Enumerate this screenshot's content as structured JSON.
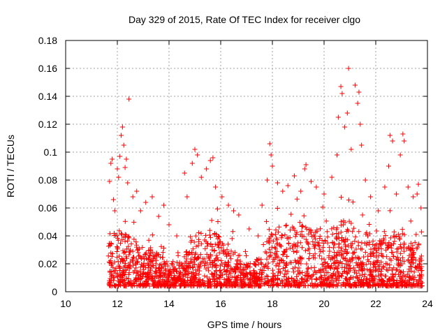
{
  "chart_data": {
    "type": "scatter",
    "title": "Day 329 of 2015, Rate Of TEC Index for receiver clgo",
    "xlabel": "GPS time / hours",
    "ylabel": "ROTI / TECUs",
    "xlim": [
      10,
      24
    ],
    "ylim": [
      0,
      0.18
    ],
    "xticks": [
      10,
      12,
      14,
      16,
      18,
      20,
      22,
      24
    ],
    "xtick_labels": [
      "10",
      "12",
      "14",
      "16",
      "18",
      "20",
      "22",
      "24"
    ],
    "yticks": [
      0,
      0.02,
      0.04,
      0.06,
      0.08,
      0.1,
      0.12,
      0.14,
      0.16,
      0.18
    ],
    "ytick_labels": [
      "0",
      "0.02",
      "0.04",
      "0.06",
      "0.08",
      "0.1",
      "0.12",
      "0.14",
      "0.16",
      "0.18"
    ],
    "grid": true,
    "marker": "+",
    "color": "#ff0000",
    "series": [
      {
        "name": "ROTI",
        "points": [
          [
            11.7,
            0.079
          ],
          [
            11.75,
            0.092
          ],
          [
            11.8,
            0.095
          ],
          [
            11.85,
            0.066
          ],
          [
            11.9,
            0.058
          ],
          [
            12.0,
            0.088
          ],
          [
            12.05,
            0.082
          ],
          [
            12.1,
            0.097
          ],
          [
            12.15,
            0.112
          ],
          [
            12.2,
            0.118
          ],
          [
            12.25,
            0.105
          ],
          [
            12.3,
            0.089
          ],
          [
            12.35,
            0.095
          ],
          [
            12.4,
            0.078
          ],
          [
            12.45,
            0.138
          ],
          [
            12.6,
            0.068
          ],
          [
            12.75,
            0.072
          ],
          [
            12.9,
            0.058
          ],
          [
            13.1,
            0.064
          ],
          [
            13.35,
            0.068
          ],
          [
            13.6,
            0.054
          ],
          [
            13.8,
            0.062
          ],
          [
            14.0,
            0.048
          ],
          [
            14.3,
            0.04
          ],
          [
            14.6,
            0.085
          ],
          [
            14.7,
            0.068
          ],
          [
            14.9,
            0.092
          ],
          [
            15.0,
            0.102
          ],
          [
            15.1,
            0.098
          ],
          [
            15.25,
            0.082
          ],
          [
            15.45,
            0.088
          ],
          [
            15.6,
            0.094
          ],
          [
            15.7,
            0.096
          ],
          [
            15.8,
            0.075
          ],
          [
            16.05,
            0.068
          ],
          [
            16.3,
            0.062
          ],
          [
            16.5,
            0.058
          ],
          [
            16.7,
            0.055
          ],
          [
            17.1,
            0.045
          ],
          [
            17.45,
            0.04
          ],
          [
            17.6,
            0.062
          ],
          [
            17.8,
            0.08
          ],
          [
            17.9,
            0.106
          ],
          [
            17.95,
            0.098
          ],
          [
            18.0,
            0.09
          ],
          [
            18.2,
            0.078
          ],
          [
            18.4,
            0.072
          ],
          [
            18.6,
            0.076
          ],
          [
            18.85,
            0.083
          ],
          [
            19.1,
            0.072
          ],
          [
            19.25,
            0.088
          ],
          [
            19.3,
            0.091
          ],
          [
            19.5,
            0.079
          ],
          [
            19.7,
            0.075
          ],
          [
            20.0,
            0.07
          ],
          [
            20.3,
            0.082
          ],
          [
            20.5,
            0.098
          ],
          [
            20.55,
            0.125
          ],
          [
            20.65,
            0.147
          ],
          [
            20.7,
            0.142
          ],
          [
            20.8,
            0.118
          ],
          [
            20.9,
            0.128
          ],
          [
            20.95,
            0.16
          ],
          [
            21.05,
            0.102
          ],
          [
            21.2,
            0.148
          ],
          [
            21.3,
            0.135
          ],
          [
            21.35,
            0.143
          ],
          [
            21.4,
            0.12
          ],
          [
            21.45,
            0.105
          ],
          [
            21.6,
            0.08
          ],
          [
            21.8,
            0.068
          ],
          [
            22.1,
            0.058
          ],
          [
            22.35,
            0.075
          ],
          [
            22.5,
            0.09
          ],
          [
            22.55,
            0.112
          ],
          [
            22.65,
            0.108
          ],
          [
            22.8,
            0.07
          ],
          [
            22.95,
            0.098
          ],
          [
            23.05,
            0.113
          ],
          [
            23.1,
            0.108
          ],
          [
            23.25,
            0.075
          ],
          [
            23.45,
            0.068
          ],
          [
            23.6,
            0.07
          ],
          [
            23.65,
            0.077
          ],
          [
            23.75,
            0.06
          ]
        ],
        "dense_band": {
          "x_start": 11.65,
          "x_end": 23.8,
          "floor": 0.004,
          "bulk_upper_envelope": [
            [
              11.65,
              0.035
            ],
            [
              12.0,
              0.045
            ],
            [
              12.5,
              0.04
            ],
            [
              13.0,
              0.032
            ],
            [
              13.5,
              0.028
            ],
            [
              14.0,
              0.022
            ],
            [
              14.5,
              0.022
            ],
            [
              15.0,
              0.042
            ],
            [
              15.5,
              0.044
            ],
            [
              16.0,
              0.04
            ],
            [
              16.5,
              0.03
            ],
            [
              17.0,
              0.022
            ],
            [
              17.5,
              0.024
            ],
            [
              18.0,
              0.045
            ],
            [
              18.5,
              0.048
            ],
            [
              19.0,
              0.05
            ],
            [
              19.5,
              0.048
            ],
            [
              20.0,
              0.042
            ],
            [
              20.5,
              0.05
            ],
            [
              21.0,
              0.052
            ],
            [
              21.5,
              0.045
            ],
            [
              22.0,
              0.035
            ],
            [
              22.5,
              0.042
            ],
            [
              23.0,
              0.045
            ],
            [
              23.5,
              0.04
            ],
            [
              23.8,
              0.03
            ]
          ]
        }
      }
    ]
  }
}
